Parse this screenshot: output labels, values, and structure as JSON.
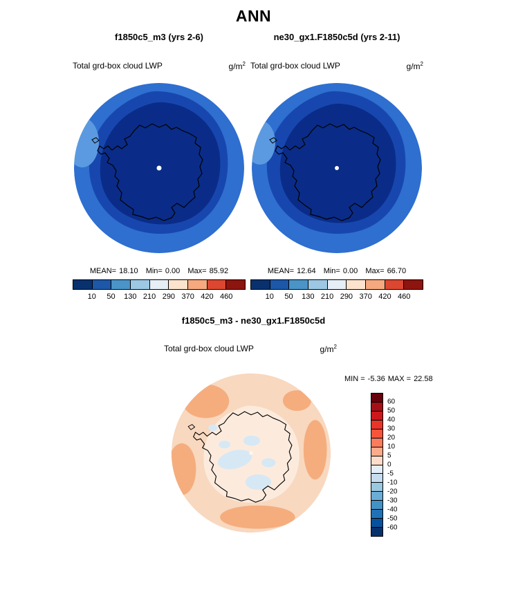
{
  "title": "ANN",
  "panels": {
    "left": {
      "header": "f1850c5_m3 (yrs 2-6)",
      "field_title": "Total grd-box cloud LWP",
      "units_base": "g/m",
      "units_exp": "2",
      "stats": {
        "mean_label": "MEAN=",
        "mean": "18.10",
        "min_label": "Min=",
        "min": "0.00",
        "max_label": "Max=",
        "max": "85.92"
      }
    },
    "right": {
      "header": "ne30_gx1.F1850c5d (yrs 2-11)",
      "field_title": "Total grd-box cloud LWP",
      "units_base": "g/m",
      "units_exp": "2",
      "stats": {
        "mean_label": "MEAN=",
        "mean": "12.64",
        "min_label": "Min=",
        "min": "0.00",
        "max_label": "Max=",
        "max": "66.70"
      }
    },
    "diff": {
      "header": "f1850c5_m3 - ne30_gx1.F1850c5d",
      "field_title": "Total grd-box cloud LWP",
      "units_base": "g/m",
      "units_exp": "2",
      "stats": {
        "min_label": "MIN =",
        "min": "-5.36",
        "max_label": "MAX =",
        "max": "22.58"
      }
    }
  },
  "chart_data": [
    {
      "type": "heatmap",
      "projection": "south-polar-stereographic-map",
      "panel": "f1850c5_m3 (yrs 2-6)",
      "title": "Total grd-box cloud LWP",
      "units": "g/m^2",
      "stats": {
        "mean": 18.1,
        "min": 0.0,
        "max": 85.92
      },
      "colorbar_levels": [
        10,
        50,
        130,
        210,
        290,
        370,
        420,
        460
      ],
      "colorbar_colors": [
        "#08316e",
        "#1d57a8",
        "#4a94c8",
        "#9cc8e4",
        "#e6eef6",
        "#fbe3cd",
        "#f6a97e",
        "#dc4732",
        "#8d1510"
      ],
      "legend_position": "bottom",
      "map_fill_note": "mostly lowest 3 levels: dark navy over Antarctica interior, medium blue ring, lighter blue outer ring"
    },
    {
      "type": "heatmap",
      "projection": "south-polar-stereographic-map",
      "panel": "ne30_gx1.F1850c5d (yrs 2-11)",
      "title": "Total grd-box cloud LWP",
      "units": "g/m^2",
      "stats": {
        "mean": 12.64,
        "min": 0.0,
        "max": 66.7
      },
      "colorbar_levels": [
        10,
        50,
        130,
        210,
        290,
        370,
        420,
        460
      ],
      "colorbar_colors": [
        "#08316e",
        "#1d57a8",
        "#4a94c8",
        "#9cc8e4",
        "#e6eef6",
        "#fbe3cd",
        "#f6a97e",
        "#dc4732",
        "#8d1510"
      ],
      "legend_position": "bottom",
      "map_fill_note": "mostly lowest 3 levels: dark navy over Antarctica interior, medium blue ring, lighter blue outer ring"
    },
    {
      "type": "heatmap",
      "projection": "south-polar-stereographic-map",
      "panel": "f1850c5_m3 - ne30_gx1.F1850c5d",
      "title": "Total grd-box cloud LWP",
      "units": "g/m^2",
      "stats": {
        "min": -5.36,
        "max": 22.58
      },
      "colorbar_levels": [
        60,
        50,
        40,
        30,
        20,
        10,
        5,
        0,
        -5,
        -10,
        -20,
        -30,
        -40,
        -50,
        -60
      ],
      "colorbar_colors": [
        "#67000d",
        "#a50f15",
        "#cb181d",
        "#e83429",
        "#f6553c",
        "#fb7c5c",
        "#fcab8a",
        "#fdddca",
        "#e4eef8",
        "#c6dcef",
        "#9ac8e0",
        "#6badd6",
        "#4292c6",
        "#2171b5",
        "#08519c",
        "#08306b"
      ],
      "legend_position": "right",
      "map_fill_note": "light orange (0 to +20) over ocean, pale with light blue patches (-5 to 0) over Antarctica interior"
    }
  ]
}
